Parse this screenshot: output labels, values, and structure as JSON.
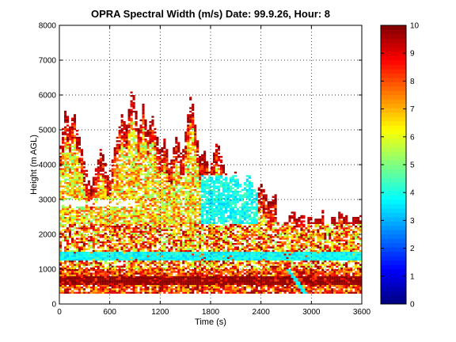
{
  "chart_data": {
    "type": "heatmap",
    "title": "OPRA Spectral Width (m/s)  Date: 99.9.26, Hour: 8",
    "xlabel": "Time (s)",
    "ylabel": "Height (m AGL)",
    "xlim": [
      0,
      3600
    ],
    "ylim": [
      0,
      8000
    ],
    "xticks": [
      "0",
      "600",
      "1200",
      "1800",
      "2400",
      "3000",
      "3600"
    ],
    "yticks": [
      "0",
      "1000",
      "2000",
      "3000",
      "4000",
      "5000",
      "6000",
      "7000",
      "8000"
    ],
    "grid": true,
    "colorbar": {
      "min": 0,
      "max": 10,
      "ticks": [
        "0",
        "1",
        "2",
        "3",
        "4",
        "5",
        "6",
        "7",
        "8",
        "9",
        "10"
      ],
      "colormap": "jet"
    },
    "echo_regions": [
      {
        "feature": "persistent near-surface layer of high width (~9-10 m/s)",
        "time": [
          0,
          3600
        ],
        "height": [
          300,
          1000
        ],
        "value_range": [
          8,
          10
        ]
      },
      {
        "feature": "continuous layer of low width (~3.5 m/s)",
        "time": [
          0,
          3600
        ],
        "height": [
          1250,
          1500
        ],
        "value_range": [
          3,
          4.5
        ]
      },
      {
        "feature": "boundary layer echoes, mixed widths",
        "time": [
          0,
          3600
        ],
        "height": [
          1000,
          2600
        ],
        "value_range": [
          4,
          10
        ]
      },
      {
        "feature": "convective plumes reaching ~6300 m",
        "time": [
          0,
          2600
        ],
        "height": [
          2000,
          6300
        ],
        "value_range": [
          4,
          10
        ]
      },
      {
        "feature": "region of low width (~3.5-4 m/s)",
        "time": [
          1700,
          2400
        ],
        "height": [
          1700,
          3600
        ],
        "value_range": [
          3,
          4.5
        ]
      },
      {
        "feature": "slanted low-width streak",
        "time": [
          2700,
          2950
        ],
        "height": [
          300,
          1000
        ],
        "value_range": [
          3,
          4
        ]
      }
    ]
  }
}
